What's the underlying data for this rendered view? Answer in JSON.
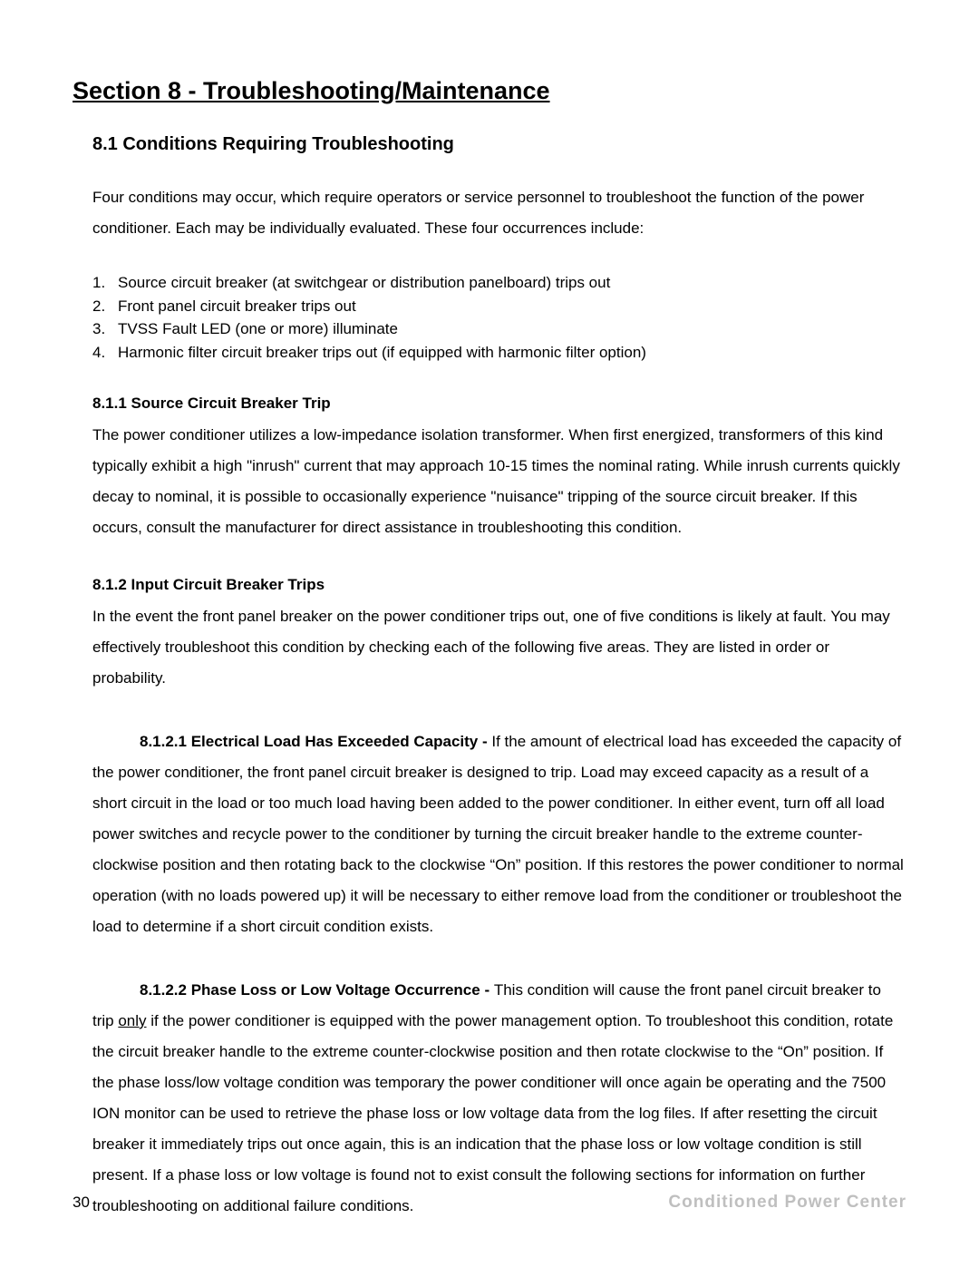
{
  "page": {
    "section_title": "Section 8 - Troubleshooting/Maintenance",
    "subsection_title": "8.1 Conditions Requiring Troubleshooting",
    "intro": "Four conditions may occur, which require operators or service personnel to troubleshoot the function of the power conditioner.  Each may be individually evaluated.  These four occurrences include:",
    "list": [
      "Source circuit breaker (at switchgear or distribution panelboard) trips out",
      "Front panel circuit breaker trips out",
      "TVSS Fault LED (one or more) illuminate",
      "Harmonic filter circuit breaker trips out (if equipped with harmonic filter option)"
    ],
    "s811": {
      "heading": "8.1.1  Source Circuit Breaker Trip",
      "body": "The power conditioner utilizes a low-impedance isolation transformer. When first energized, transformers of this kind typically exhibit a high \"inrush\" current that may approach 10-15 times the nominal rating. While inrush currents quickly decay to nominal, it is possible to occasionally experience \"nuisance\" tripping of the source circuit breaker.  If this occurs, consult the manufacturer for direct assistance in troubleshooting this condition."
    },
    "s812": {
      "heading": "8.1.2 Input Circuit Breaker Trips",
      "body": "In the event the front panel breaker on the power conditioner trips out, one of five conditions is likely at fault.  You may effectively troubleshoot this condition by checking each of the following five areas.  They are listed in order or probability."
    },
    "s8121": {
      "lead": "8.1.2.1 Electrical Load Has Exceeded Capacity - ",
      "body": "If the amount of electrical load has exceeded the capacity of the power conditioner, the front panel circuit breaker is designed to trip.  Load may exceed capacity as a result of a short circuit in the load or too much load having been added to the power conditioner.  In either event, turn off all load power switches and recycle power to the conditioner by turning the circuit breaker handle to the extreme counter-clockwise position and then rotating back to the clockwise “On” position.  If this restores the power conditioner to normal operation (with no loads powered up) it will be necessary to either remove load from the conditioner or troubleshoot the load to determine if a short circuit condition exists."
    },
    "s8122": {
      "lead": "8.1.2.2 Phase Loss or Low Voltage Occurrence - ",
      "pre": "This condition will cause the front panel circuit breaker to trip ",
      "underlined": "only",
      "post": " if the power conditioner is equipped with the power management option.  To troubleshoot this condition, rotate the circuit breaker handle to the extreme counter-clockwise position and then rotate clockwise to the “On” position.  If the phase loss/low voltage condition was temporary the power conditioner will once again be operating and the 7500 ION monitor can be used to retrieve the phase loss or low voltage data from the log files.  If after resetting the circuit breaker it immediately trips out once again, this is an indication that the phase loss or low voltage condition is still present.  If a phase loss or low voltage is found not to exist consult the following sections for information on further troubleshooting on additional failure conditions."
    },
    "footer": {
      "page_number": "30",
      "brand": "Conditioned Power Center"
    }
  },
  "colors": {
    "text": "#000000",
    "background": "#ffffff",
    "footer_brand": "#bfbfbf"
  },
  "typography": {
    "base_font": "Arial",
    "section_title_pt": 27,
    "subsection_title_pt": 20,
    "body_pt": 17,
    "footer_brand_pt": 19
  }
}
